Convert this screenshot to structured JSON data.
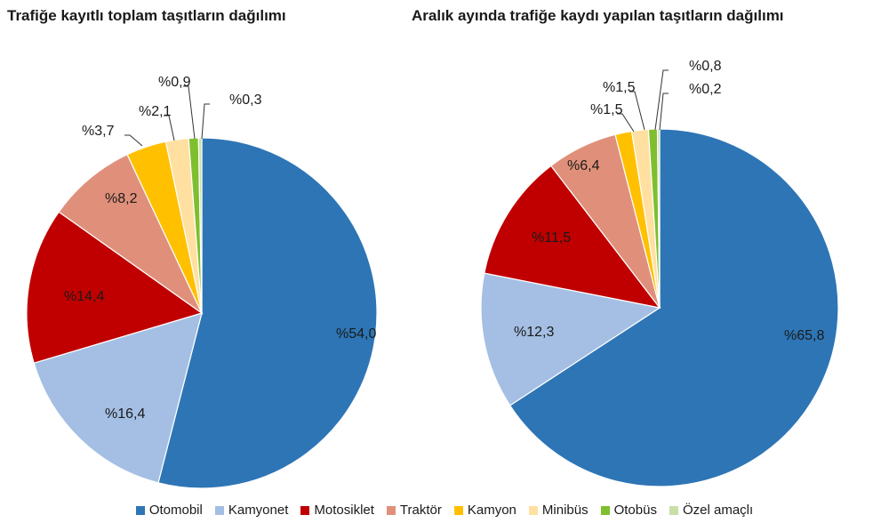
{
  "colors": {
    "Otomobil": "#2e75b6",
    "Kamyonet": "#a4bfe3",
    "Motosiklet": "#c00000",
    "Traktör": "#e0907a",
    "Kamyon": "#ffc000",
    "Minibüs": "#ffe0a0",
    "Otobüs": "#7fbf2f",
    "Özel amaçlı": "#c8e0a8"
  },
  "legend": [
    "Otomobil",
    "Kamyonet",
    "Motosiklet",
    "Traktör",
    "Kamyon",
    "Minibüs",
    "Otobüs",
    "Özel amaçlı"
  ],
  "chart_data": [
    {
      "type": "pie",
      "title": "Trafiğe kayıtlı toplam taşıtların dağılımı",
      "legend_position": "bottom",
      "categories": [
        "Otomobil",
        "Kamyonet",
        "Motosiklet",
        "Traktör",
        "Kamyon",
        "Minibüs",
        "Otobüs",
        "Özel amaçlı"
      ],
      "values": [
        54.0,
        16.4,
        14.4,
        8.2,
        3.7,
        2.1,
        0.9,
        0.3
      ],
      "labels": [
        "%54,0",
        "%16,4",
        "%14,4",
        "%8,2",
        "%3,7",
        "%2,1",
        "%0,9",
        "%0,3"
      ]
    },
    {
      "type": "pie",
      "title": "Aralık ayında trafiğe kaydı yapılan taşıtların dağılımı",
      "legend_position": "bottom",
      "categories": [
        "Otomobil",
        "Kamyonet",
        "Motosiklet",
        "Traktör",
        "Kamyon",
        "Minibüs",
        "Otobüs",
        "Özel amaçlı"
      ],
      "values": [
        65.8,
        12.3,
        11.5,
        6.4,
        1.5,
        1.5,
        0.8,
        0.2
      ],
      "labels": [
        "%65,8",
        "%12,3",
        "%11,5",
        "%6,4",
        "%1,5",
        "%1,5",
        "%0,8",
        "%0,2"
      ]
    }
  ]
}
